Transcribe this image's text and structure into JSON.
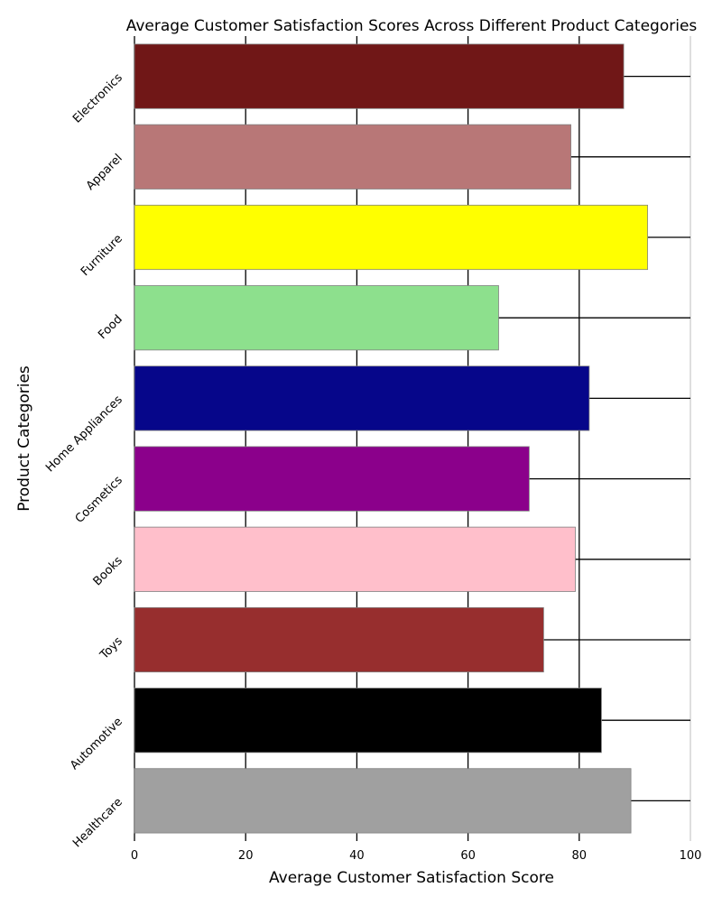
{
  "chart_data": {
    "type": "bar",
    "orientation": "horizontal",
    "title": "Average Customer Satisfaction Scores Across Different Product Categories",
    "xlabel": "Average Customer Satisfaction Score",
    "ylabel": "Product Categories",
    "xlim": [
      0,
      100
    ],
    "xticks": [
      0,
      20,
      40,
      60,
      80,
      100
    ],
    "grid": true,
    "categories": [
      "Electronics",
      "Apparel",
      "Furniture",
      "Food",
      "Home Appliances",
      "Cosmetics",
      "Books",
      "Toys",
      "Automotive",
      "Healthcare"
    ],
    "values": [
      88.0,
      78.5,
      92.3,
      65.5,
      81.8,
      71.0,
      79.3,
      73.6,
      84.0,
      89.3
    ],
    "colors": [
      "#701717",
      "#b87777",
      "#ffff00",
      "#8de08d",
      "#06068a",
      "#8b008b",
      "#ffbfcb",
      "#972e2e",
      "#000000",
      "#a0a0a0"
    ]
  }
}
